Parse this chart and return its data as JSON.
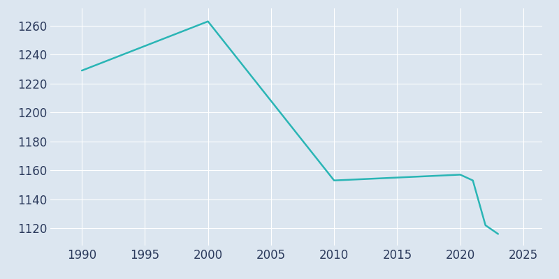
{
  "years": [
    1990,
    2000,
    2010,
    2020,
    2021,
    2022,
    2023
  ],
  "population": [
    1229,
    1263,
    1153,
    1157,
    1153,
    1122,
    1116
  ],
  "line_color": "#2ab5b5",
  "background_color": "#dce6f0",
  "plot_bg_color": "#dce6f0",
  "grid_color": "#ffffff",
  "xlim": [
    1987.5,
    2026.5
  ],
  "ylim": [
    1108,
    1272
  ],
  "yticks": [
    1120,
    1140,
    1160,
    1180,
    1200,
    1220,
    1240,
    1260
  ],
  "xticks": [
    1990,
    1995,
    2000,
    2005,
    2010,
    2015,
    2020,
    2025
  ],
  "tick_label_color": "#2b3a5c",
  "tick_label_fontsize": 12,
  "linewidth": 1.8
}
